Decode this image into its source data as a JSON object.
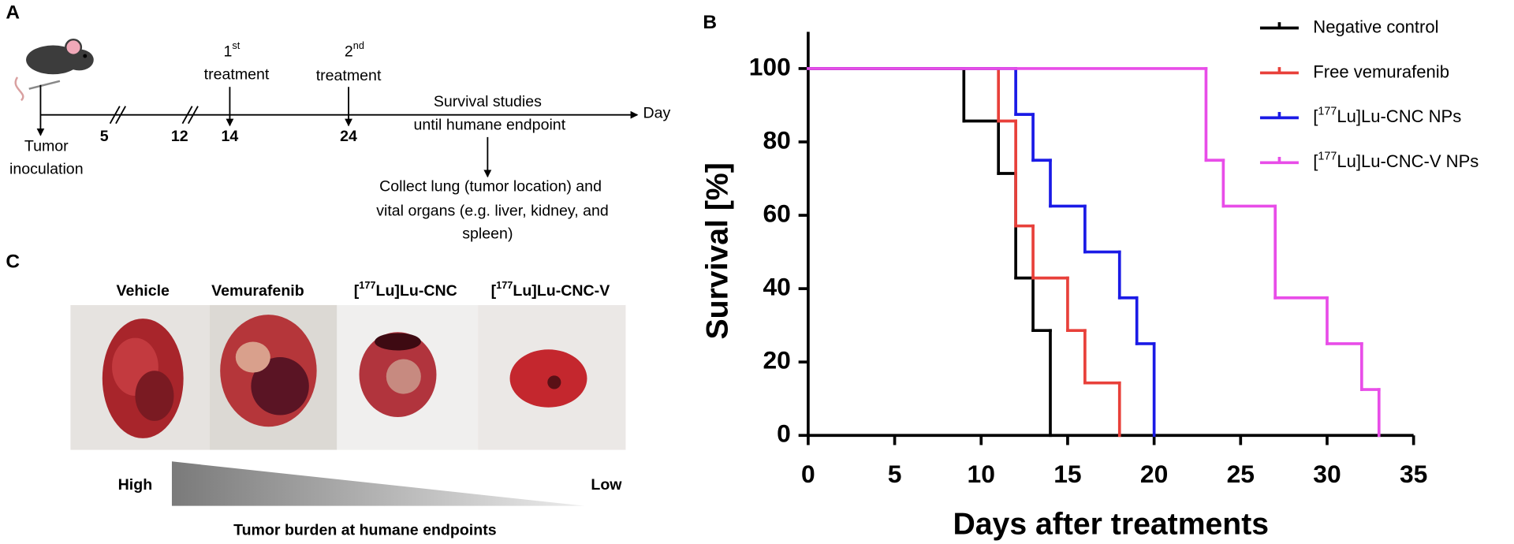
{
  "panel_labels": [
    "A",
    "B",
    "C"
  ],
  "panel_a": {
    "day_label": "Day",
    "inoculation": [
      "Tumor",
      "inoculation"
    ],
    "days": [
      "5",
      "12",
      "14",
      "24"
    ],
    "treatments": [
      {
        "label": "1st",
        "text": "treatment"
      },
      {
        "label": "2nd",
        "text": "treatment"
      }
    ],
    "survival_note": [
      "Survival studies",
      "until humane endpoint"
    ],
    "collect_note": [
      "Collect lung (tumor location) and",
      "vital organs (e.g. liver, kidney, and",
      "spleen)"
    ]
  },
  "panel_c": {
    "groups": [
      "Vehicle",
      "Vemurafenib",
      "[177Lu]Lu-CNC",
      "[177Lu]Lu-CNC-V"
    ],
    "high": "High",
    "low": "Low",
    "caption": "Tumor burden at humane endpoints"
  },
  "chart_data": {
    "type": "step",
    "xlabel": "Days after treatments",
    "ylabel": "Survival [%]",
    "xlim": [
      0,
      35
    ],
    "xticks": [
      0,
      5,
      10,
      15,
      20,
      25,
      30,
      35
    ],
    "ylim": [
      0,
      110
    ],
    "yticks": [
      0,
      20,
      40,
      60,
      80,
      100
    ],
    "legend": "top-right",
    "series": [
      {
        "name": "Negative control",
        "color": "#000000",
        "x": [
          0,
          9,
          11,
          12,
          13,
          14
        ],
        "values": [
          100,
          85.7,
          71.4,
          42.9,
          28.6,
          0
        ]
      },
      {
        "name": "Free vemurafenib",
        "color": "#e8403a",
        "x": [
          0,
          11,
          12,
          13,
          15,
          16,
          18
        ],
        "values": [
          100,
          85.7,
          57.1,
          42.9,
          28.6,
          14.3,
          0
        ]
      },
      {
        "name": "[177Lu]Lu-CNC NPs",
        "color": "#1a1ae6",
        "x": [
          0,
          12,
          13,
          14,
          16,
          18,
          19,
          20
        ],
        "values": [
          100,
          87.5,
          75,
          62.5,
          50,
          37.5,
          25,
          0
        ]
      },
      {
        "name": "[177Lu]Lu-CNC-V NPs",
        "color": "#e84de8",
        "x": [
          0,
          23,
          24,
          27,
          30,
          32,
          33
        ],
        "values": [
          100,
          75,
          62.5,
          37.5,
          25,
          12.5,
          0
        ]
      }
    ]
  }
}
